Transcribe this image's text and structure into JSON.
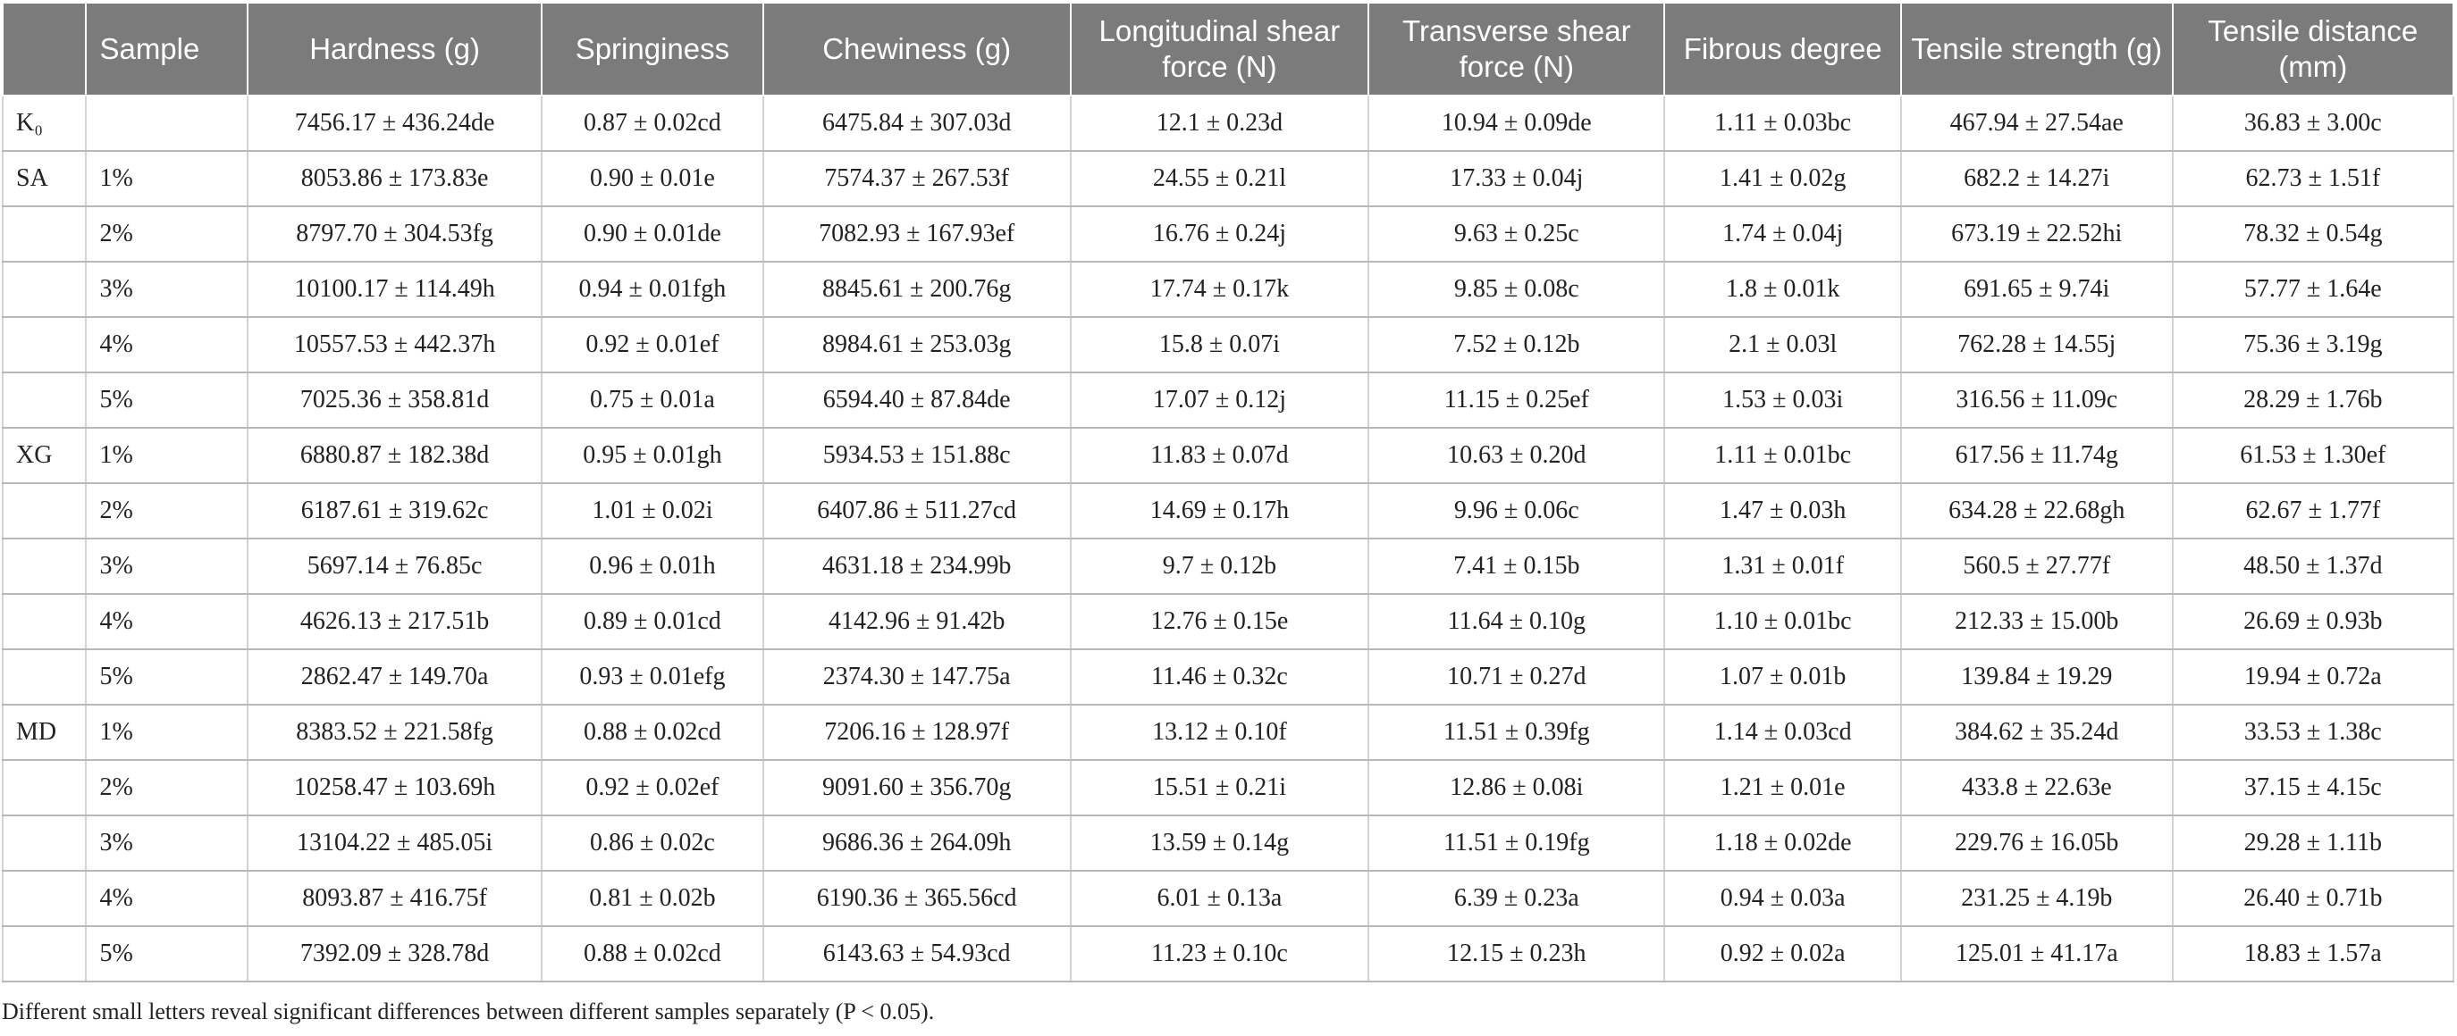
{
  "table": {
    "headers": [
      "",
      "Sample",
      "Hardness (g)",
      "Springiness",
      "Chewiness (g)",
      "Longitudinal shear force (N)",
      "Transverse shear force (N)",
      "Fibrous degree",
      "Tensile strength (g)",
      "Tensile distance (mm)"
    ],
    "rows": [
      [
        "K₀",
        "",
        "7456.17 ± 436.24de",
        "0.87 ± 0.02cd",
        "6475.84 ± 307.03d",
        "12.1 ± 0.23d",
        "10.94 ± 0.09de",
        "1.11 ± 0.03bc",
        "467.94 ± 27.54ae",
        "36.83 ± 3.00c"
      ],
      [
        "SA",
        "1%",
        "8053.86 ± 173.83e",
        "0.90 ± 0.01e",
        "7574.37 ± 267.53f",
        "24.55 ± 0.21l",
        "17.33 ± 0.04j",
        "1.41 ± 0.02g",
        "682.2 ± 14.27i",
        "62.73 ± 1.51f"
      ],
      [
        "",
        "2%",
        "8797.70 ± 304.53fg",
        "0.90 ± 0.01de",
        "7082.93 ± 167.93ef",
        "16.76 ± 0.24j",
        "9.63 ± 0.25c",
        "1.74 ± 0.04j",
        "673.19 ± 22.52hi",
        "78.32 ± 0.54g"
      ],
      [
        "",
        "3%",
        "10100.17 ± 114.49h",
        "0.94 ± 0.01fgh",
        "8845.61 ± 200.76g",
        "17.74 ± 0.17k",
        "9.85 ± 0.08c",
        "1.8 ± 0.01k",
        "691.65 ± 9.74i",
        "57.77 ± 1.64e"
      ],
      [
        "",
        "4%",
        "10557.53 ± 442.37h",
        "0.92 ± 0.01ef",
        "8984.61 ± 253.03g",
        "15.8 ± 0.07i",
        "7.52 ± 0.12b",
        "2.1 ± 0.03l",
        "762.28 ± 14.55j",
        "75.36 ± 3.19g"
      ],
      [
        "",
        "5%",
        "7025.36 ± 358.81d",
        "0.75 ± 0.01a",
        "6594.40 ± 87.84de",
        "17.07 ± 0.12j",
        "11.15 ± 0.25ef",
        "1.53 ± 0.03i",
        "316.56 ± 11.09c",
        "28.29 ± 1.76b"
      ],
      [
        "XG",
        "1%",
        "6880.87 ± 182.38d",
        "0.95 ± 0.01gh",
        "5934.53 ± 151.88c",
        "11.83 ± 0.07d",
        "10.63 ± 0.20d",
        "1.11 ± 0.01bc",
        "617.56 ± 11.74g",
        "61.53 ± 1.30ef"
      ],
      [
        "",
        "2%",
        "6187.61 ± 319.62c",
        "1.01 ± 0.02i",
        "6407.86 ± 511.27cd",
        "14.69 ± 0.17h",
        "9.96 ± 0.06c",
        "1.47 ± 0.03h",
        "634.28 ± 22.68gh",
        "62.67 ± 1.77f"
      ],
      [
        "",
        "3%",
        "5697.14 ± 76.85c",
        "0.96 ± 0.01h",
        "4631.18 ± 234.99b",
        "9.7 ± 0.12b",
        "7.41 ± 0.15b",
        "1.31 ± 0.01f",
        "560.5 ± 27.77f",
        "48.50 ± 1.37d"
      ],
      [
        "",
        "4%",
        "4626.13 ± 217.51b",
        "0.89 ± 0.01cd",
        "4142.96 ± 91.42b",
        "12.76 ± 0.15e",
        "11.64 ± 0.10g",
        "1.10 ± 0.01bc",
        "212.33 ± 15.00b",
        "26.69 ± 0.93b"
      ],
      [
        "",
        "5%",
        "2862.47 ± 149.70a",
        "0.93 ± 0.01efg",
        "2374.30 ± 147.75a",
        "11.46 ± 0.32c",
        "10.71 ± 0.27d",
        "1.07 ± 0.01b",
        "139.84 ± 19.29",
        "19.94 ± 0.72a"
      ],
      [
        "MD",
        "1%",
        "8383.52 ± 221.58fg",
        "0.88 ± 0.02cd",
        "7206.16 ± 128.97f",
        "13.12 ± 0.10f",
        "11.51 ± 0.39fg",
        "1.14 ± 0.03cd",
        "384.62 ± 35.24d",
        "33.53 ± 1.38c"
      ],
      [
        "",
        "2%",
        "10258.47 ± 103.69h",
        "0.92 ± 0.02ef",
        "9091.60 ± 356.70g",
        "15.51 ± 0.21i",
        "12.86 ± 0.08i",
        "1.21 ± 0.01e",
        "433.8 ± 22.63e",
        "37.15 ± 4.15c"
      ],
      [
        "",
        "3%",
        "13104.22 ± 485.05i",
        "0.86 ± 0.02c",
        "9686.36 ± 264.09h",
        "13.59 ± 0.14g",
        "11.51 ± 0.19fg",
        "1.18 ± 0.02de",
        "229.76 ± 16.05b",
        "29.28 ± 1.11b"
      ],
      [
        "",
        "4%",
        "8093.87 ± 416.75f",
        "0.81 ± 0.02b",
        "6190.36 ± 365.56cd",
        "6.01 ± 0.13a",
        "6.39 ± 0.23a",
        "0.94 ± 0.03a",
        "231.25 ± 4.19b",
        "26.40 ± 0.71b"
      ],
      [
        "",
        "5%",
        "7392.09 ± 328.78d",
        "0.88 ± 0.02cd",
        "6143.63 ± 54.93cd",
        "11.23 ± 0.10c",
        "12.15 ± 0.23h",
        "0.92 ± 0.02a",
        "125.01 ± 41.17a",
        "18.83 ± 1.57a"
      ]
    ]
  },
  "footnote": "Different small letters reveal significant differences between different samples separately (P < 0.05)."
}
